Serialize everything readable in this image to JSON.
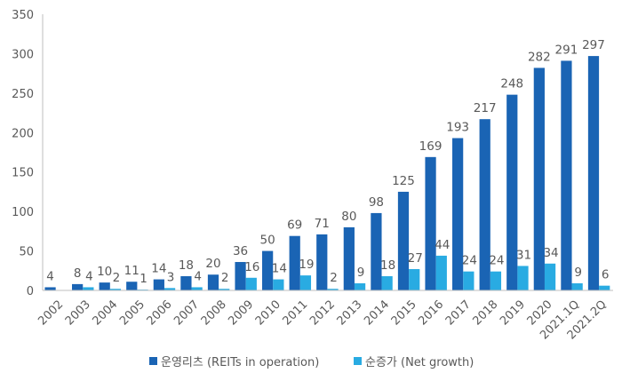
{
  "chart_data": {
    "type": "bar",
    "categories": [
      "2002",
      "2003",
      "2004",
      "2005",
      "2006",
      "2007",
      "2008",
      "2009",
      "2010",
      "2011",
      "2012",
      "2013",
      "2014",
      "2015",
      "2016",
      "2017",
      "2018",
      "2019",
      "2020",
      "2021.1Q",
      "2021.2Q"
    ],
    "series": [
      {
        "name": "운영리츠 (REITs in operation)",
        "color": "#1a64b4",
        "values": [
          4,
          8,
          10,
          11,
          14,
          18,
          20,
          36,
          50,
          69,
          71,
          80,
          98,
          125,
          169,
          193,
          217,
          248,
          282,
          291,
          297
        ]
      },
      {
        "name": "순증가 (Net growth)",
        "color": "#29abe2",
        "values": [
          null,
          4,
          2,
          1,
          3,
          4,
          2,
          16,
          14,
          19,
          2,
          9,
          18,
          27,
          44,
          24,
          24,
          31,
          34,
          9,
          6
        ]
      }
    ],
    "ylim": [
      0,
      350
    ],
    "yticks": [
      0,
      50,
      100,
      150,
      200,
      250,
      300,
      350
    ],
    "legend_position": "bottom-center",
    "grid": false
  }
}
